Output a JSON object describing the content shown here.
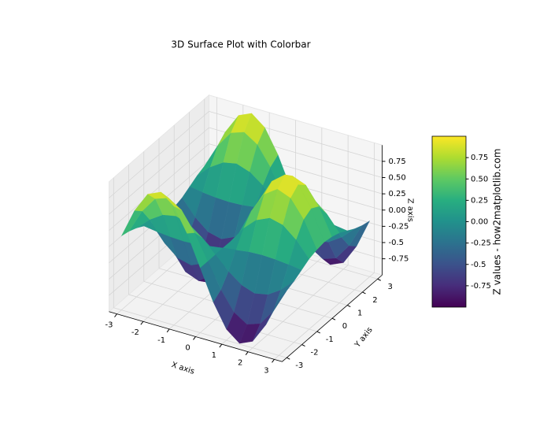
{
  "chart_data": {
    "type": "surface",
    "title": "3D Surface Plot with Colorbar",
    "xlabel": "X axis",
    "ylabel": "Y axis",
    "zlabel": "Z axis",
    "x": [
      -3,
      -2.5,
      -2,
      -1.5,
      -1,
      -0.5,
      0,
      0.5,
      1,
      1.5,
      2,
      2.5,
      3
    ],
    "y": [
      -3,
      -2.5,
      -2,
      -1.5,
      -1,
      -0.5,
      0,
      0.5,
      1,
      1.5,
      2,
      2.5,
      3
    ],
    "z": [
      [
        0.14,
        0.59,
        0.9,
        0.99,
        0.83,
        0.47,
        0,
        -0.47,
        -0.83,
        -0.99,
        -0.9,
        -0.59,
        -0.14
      ],
      [
        0.11,
        0.48,
        0.73,
        0.8,
        0.67,
        0.38,
        0,
        -0.38,
        -0.67,
        -0.8,
        -0.73,
        -0.48,
        -0.11
      ],
      [
        0.06,
        0.25,
        0.38,
        0.42,
        0.35,
        0.2,
        0,
        -0.2,
        -0.35,
        -0.42,
        -0.38,
        -0.25,
        -0.06
      ],
      [
        -0.01,
        -0.04,
        -0.06,
        -0.07,
        -0.06,
        -0.03,
        0,
        0.03,
        0.06,
        0.07,
        0.06,
        0.04,
        0.01
      ],
      [
        -0.08,
        -0.32,
        -0.49,
        -0.54,
        -0.45,
        -0.26,
        0,
        0.26,
        0.45,
        0.54,
        0.49,
        0.32,
        0.08
      ],
      [
        -0.12,
        -0.53,
        -0.8,
        -0.88,
        -0.74,
        -0.42,
        0,
        0.42,
        0.74,
        0.88,
        0.8,
        0.53,
        0.12
      ],
      [
        -0.14,
        -0.6,
        -0.91,
        -1.0,
        -0.84,
        -0.48,
        0,
        0.48,
        0.84,
        1.0,
        0.91,
        0.6,
        0.14
      ],
      [
        -0.12,
        -0.53,
        -0.8,
        -0.88,
        -0.74,
        -0.42,
        0,
        0.42,
        0.74,
        0.88,
        0.8,
        0.53,
        0.12
      ],
      [
        -0.08,
        -0.32,
        -0.49,
        -0.54,
        -0.45,
        -0.26,
        0,
        0.26,
        0.45,
        0.54,
        0.49,
        0.32,
        0.08
      ],
      [
        -0.01,
        -0.04,
        -0.06,
        -0.07,
        -0.06,
        -0.03,
        0,
        0.03,
        0.06,
        0.07,
        0.06,
        0.04,
        0.01
      ],
      [
        0.06,
        0.25,
        0.38,
        0.42,
        0.35,
        0.2,
        0,
        -0.2,
        -0.35,
        -0.42,
        -0.38,
        -0.25,
        -0.06
      ],
      [
        0.11,
        0.48,
        0.73,
        0.8,
        0.67,
        0.38,
        0,
        -0.38,
        -0.67,
        -0.8,
        -0.73,
        -0.48,
        -0.11
      ],
      [
        0.14,
        0.59,
        0.9,
        0.99,
        0.83,
        0.47,
        0,
        -0.47,
        -0.83,
        -0.99,
        -0.9,
        -0.59,
        -0.14
      ]
    ],
    "xlim": [
      -3.3,
      3.3
    ],
    "ylim": [
      -3.3,
      3.3
    ],
    "zlim": [
      -1,
      1
    ],
    "xticks": [
      -3,
      -2,
      -1,
      0,
      1,
      2,
      3
    ],
    "yticks": [
      -3,
      -2,
      -1,
      0,
      1,
      2,
      3
    ],
    "zticks": [
      -0.75,
      -0.5,
      -0.25,
      {
        "value": 0,
        "label": "0.00"
      },
      0.25,
      {
        "value": 0.5,
        "label": "0.50"
      },
      0.75
    ],
    "colormap": "viridis",
    "colorbar": {
      "label": "Z values - how2matplotlib.com",
      "clim": [
        -1,
        1
      ],
      "ticks": [
        -0.75,
        -0.5,
        -0.25,
        {
          "value": 0,
          "label": "0.00"
        },
        0.25,
        {
          "value": 0.5,
          "label": "0.50"
        },
        0.75
      ]
    },
    "grid": true
  }
}
